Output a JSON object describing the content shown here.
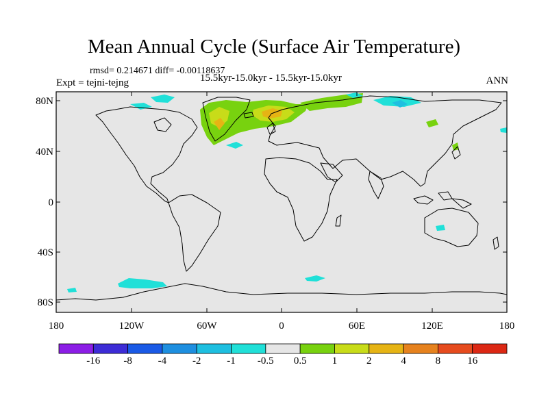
{
  "title": "Mean Annual Cycle (Surface Air Temperature)",
  "stats": "rmsd= 0.214671 diff= -0.00118637",
  "expt": "Expt = tejni-tejng",
  "case": "15.5kyr-15.0kyr - 15.5kyr-15.0kyr",
  "season": "ANN",
  "lat_labels": [
    "80N",
    "40N",
    "0",
    "40S",
    "80S"
  ],
  "lon_labels": [
    "180",
    "120W",
    "60W",
    "0",
    "60E",
    "120E",
    "180"
  ],
  "colorbar": {
    "labels": [
      "-16",
      "-8",
      "-4",
      "-2",
      "-1",
      "-0.5",
      "0.5",
      "1",
      "2",
      "4",
      "8",
      "16"
    ],
    "colors": [
      "#8c1ee6",
      "#3d2cd6",
      "#1a5ae6",
      "#1e8fe0",
      "#1ebfe0",
      "#20e0d8",
      "#e6e6e6",
      "#78d20f",
      "#c8dc19",
      "#e6b414",
      "#e6821e",
      "#e64b1e",
      "#dc2814"
    ]
  },
  "colors": {
    "land_ocean": "#e6e6e6",
    "frame": "#000000"
  }
}
